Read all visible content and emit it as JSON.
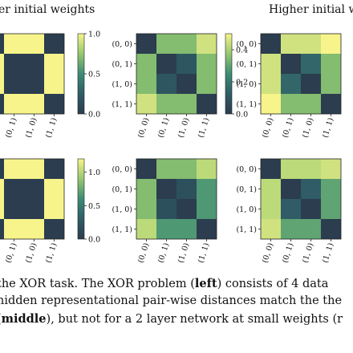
{
  "titles": {
    "left": "er initial weights",
    "right": "Higher initial w"
  },
  "caption": {
    "line1": {
      "a": "the XOR task. The XOR problem (",
      "b": "left",
      "c": ") consists of 4 data"
    },
    "line2": "hidden representational pair-wise distances match the the",
    "line3": {
      "a": "(",
      "b": "middle",
      "c": "), but not for a 2 layer network at small weights (r"
    }
  },
  "labels": [
    "(0, 0)",
    "(0, 1)",
    "(1, 0)",
    "(1, 1)"
  ],
  "colors": {
    "low": "#2b3d4f",
    "high": "#f6f48a",
    "frame": "#222222"
  },
  "chart_data": [
    {
      "type": "heatmap",
      "panel": "top-left",
      "values": [
        [
          0,
          1,
          1,
          0
        ],
        [
          1,
          0,
          0,
          1
        ],
        [
          1,
          0,
          0,
          1
        ],
        [
          0,
          1,
          1,
          0
        ]
      ],
      "colorbar": {
        "ticks": [
          "1.0",
          "0.5",
          "0.0"
        ],
        "range": [
          0,
          1.0
        ]
      }
    },
    {
      "type": "heatmap",
      "panel": "top-middle",
      "values": [
        [
          0,
          0.35,
          0.35,
          0.45
        ],
        [
          0.35,
          0,
          0.1,
          0.35
        ],
        [
          0.35,
          0.1,
          0,
          0.35
        ],
        [
          0.45,
          0.35,
          0.35,
          0
        ]
      ],
      "colorbar": {
        "ticks": [
          "0.4",
          "0.2",
          "0.0"
        ],
        "range": [
          0,
          0.5
        ]
      }
    },
    {
      "type": "heatmap",
      "panel": "top-right",
      "values": [
        [
          0,
          0.9,
          0.9,
          1.0
        ],
        [
          0.9,
          0,
          0.3,
          0.7
        ],
        [
          0.9,
          0.3,
          0,
          0.7
        ],
        [
          1.0,
          0.7,
          0.7,
          0
        ]
      ]
    },
    {
      "type": "heatmap",
      "panel": "bottom-left",
      "values": [
        [
          0,
          1.2,
          1.2,
          0
        ],
        [
          1.2,
          0,
          0,
          1.2
        ],
        [
          1.2,
          0,
          0,
          1.2
        ],
        [
          0,
          1.2,
          1.2,
          0
        ]
      ],
      "colorbar": {
        "ticks": [
          "1.0",
          "0.5",
          "0.0"
        ],
        "range": [
          0,
          1.2
        ]
      }
    },
    {
      "type": "heatmap",
      "panel": "bottom-middle",
      "values": [
        [
          0,
          0.7,
          0.7,
          0.85
        ],
        [
          0.7,
          0,
          0.15,
          0.55
        ],
        [
          0.7,
          0.15,
          0,
          0.55
        ],
        [
          0.85,
          0.55,
          0.55,
          0
        ]
      ]
    },
    {
      "type": "heatmap",
      "panel": "bottom-right",
      "values": [
        [
          0,
          0.85,
          0.85,
          0.9
        ],
        [
          0.85,
          0,
          0.25,
          0.6
        ],
        [
          0.85,
          0.25,
          0,
          0.6
        ],
        [
          0.9,
          0.6,
          0.6,
          0
        ]
      ]
    }
  ]
}
